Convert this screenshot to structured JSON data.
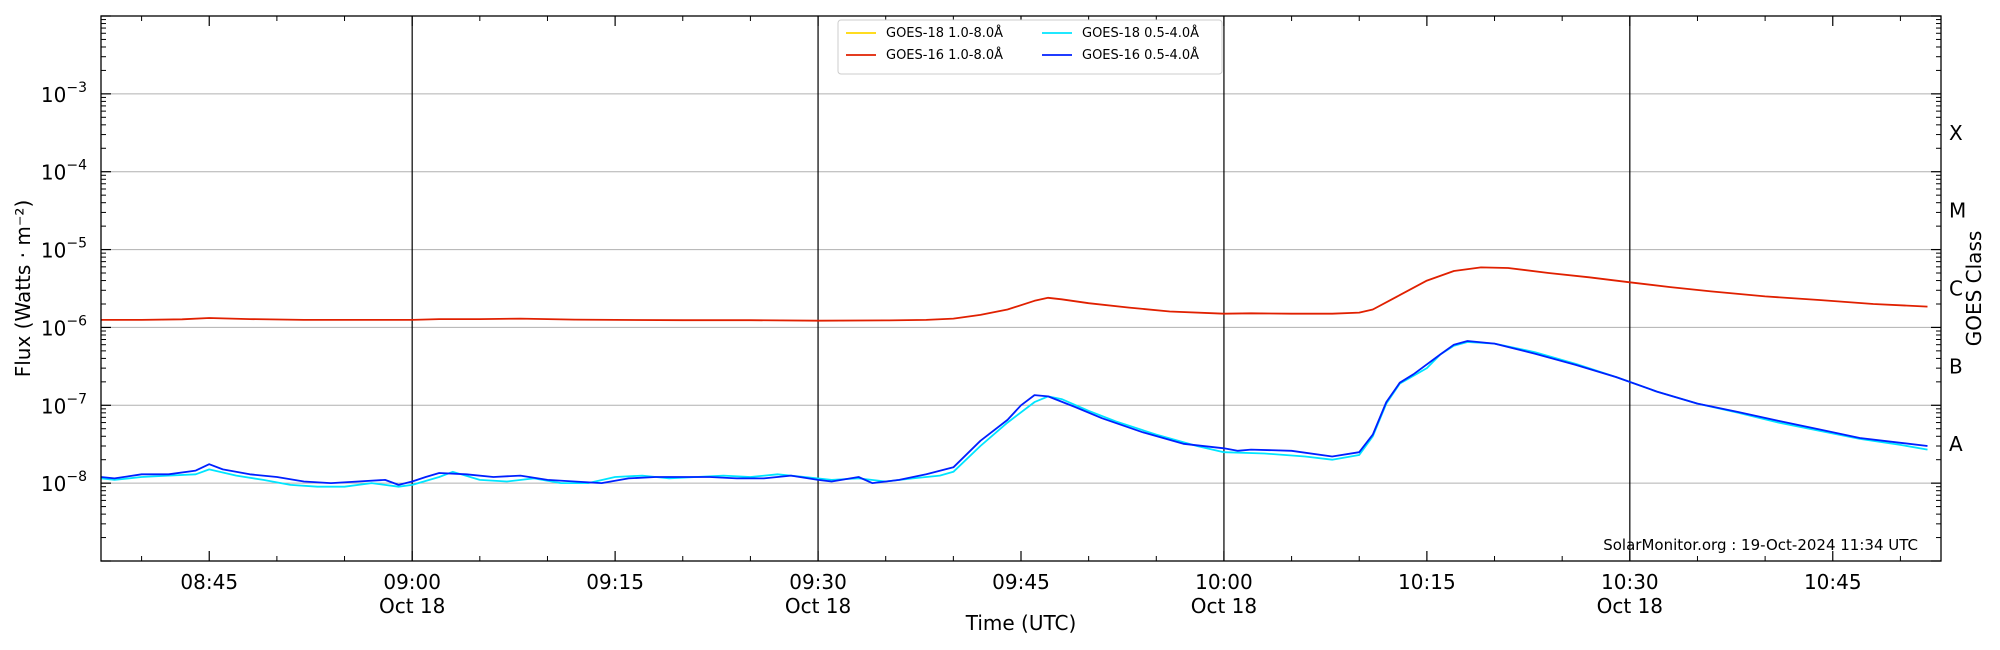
{
  "chart_data": {
    "type": "line",
    "xlabel": "Time (UTC)",
    "ylabel": "Flux (Watts · m⁻²)",
    "y2label": "GOES Class",
    "credit": "SolarMonitor.org : 19-Oct-2024 11:34 UTC",
    "yscale": "log",
    "xlim": [
      "08:37",
      "10:53"
    ],
    "ylim": [
      1e-09,
      0.01
    ],
    "grid": "horizontal",
    "legend_position": "top-center",
    "x_ticks": [
      {
        "t": "08:45",
        "label": "08:45",
        "date": ""
      },
      {
        "t": "09:00",
        "label": "09:00",
        "date": "Oct 18"
      },
      {
        "t": "09:15",
        "label": "09:15",
        "date": ""
      },
      {
        "t": "09:30",
        "label": "09:30",
        "date": "Oct 18"
      },
      {
        "t": "09:45",
        "label": "09:45",
        "date": ""
      },
      {
        "t": "10:00",
        "label": "10:00",
        "date": "Oct 18"
      },
      {
        "t": "10:15",
        "label": "10:15",
        "date": ""
      },
      {
        "t": "10:30",
        "label": "10:30",
        "date": "Oct 18"
      },
      {
        "t": "10:45",
        "label": "10:45",
        "date": ""
      }
    ],
    "vlines": [
      "09:00",
      "09:30",
      "10:00",
      "10:30"
    ],
    "y_ticks": [
      {
        "exp": -8,
        "base": "10",
        "sup": "−8"
      },
      {
        "exp": -7,
        "base": "10",
        "sup": "−7"
      },
      {
        "exp": -6,
        "base": "10",
        "sup": "−6"
      },
      {
        "exp": -5,
        "base": "10",
        "sup": "−5"
      },
      {
        "exp": -4,
        "base": "10",
        "sup": "−4"
      },
      {
        "exp": -3,
        "base": "10",
        "sup": "−3"
      }
    ],
    "classes": [
      {
        "label": "A",
        "exp": -7.5
      },
      {
        "label": "B",
        "exp": -6.5
      },
      {
        "label": "C",
        "exp": -5.5
      },
      {
        "label": "M",
        "exp": -4.5
      },
      {
        "label": "X",
        "exp": -3.5
      }
    ],
    "series": [
      {
        "name": "GOES-18 1.0-8.0Å",
        "color": "#ffd700",
        "points": []
      },
      {
        "name": "GOES-16 1.0-8.0Å",
        "color": "#e02000",
        "points": [
          [
            "08:37",
            1.25e-06
          ],
          [
            "08:40",
            1.25e-06
          ],
          [
            "08:43",
            1.27e-06
          ],
          [
            "08:45",
            1.32e-06
          ],
          [
            "08:48",
            1.28e-06
          ],
          [
            "08:52",
            1.25e-06
          ],
          [
            "08:56",
            1.25e-06
          ],
          [
            "09:00",
            1.25e-06
          ],
          [
            "09:02",
            1.28e-06
          ],
          [
            "09:05",
            1.28e-06
          ],
          [
            "09:08",
            1.3e-06
          ],
          [
            "09:12",
            1.26e-06
          ],
          [
            "09:15",
            1.25e-06
          ],
          [
            "09:20",
            1.24e-06
          ],
          [
            "09:25",
            1.24e-06
          ],
          [
            "09:30",
            1.22e-06
          ],
          [
            "09:35",
            1.23e-06
          ],
          [
            "09:38",
            1.25e-06
          ],
          [
            "09:40",
            1.3e-06
          ],
          [
            "09:42",
            1.45e-06
          ],
          [
            "09:44",
            1.7e-06
          ],
          [
            "09:46",
            2.2e-06
          ],
          [
            "09:47",
            2.4e-06
          ],
          [
            "09:48",
            2.3e-06
          ],
          [
            "09:50",
            2.05e-06
          ],
          [
            "09:53",
            1.8e-06
          ],
          [
            "09:56",
            1.6e-06
          ],
          [
            "10:00",
            1.5e-06
          ],
          [
            "10:02",
            1.52e-06
          ],
          [
            "10:05",
            1.5e-06
          ],
          [
            "10:08",
            1.5e-06
          ],
          [
            "10:10",
            1.55e-06
          ],
          [
            "10:11",
            1.7e-06
          ],
          [
            "10:13",
            2.6e-06
          ],
          [
            "10:15",
            4e-06
          ],
          [
            "10:17",
            5.3e-06
          ],
          [
            "10:19",
            5.9e-06
          ],
          [
            "10:21",
            5.8e-06
          ],
          [
            "10:24",
            5e-06
          ],
          [
            "10:27",
            4.4e-06
          ],
          [
            "10:30",
            3.8e-06
          ],
          [
            "10:33",
            3.3e-06
          ],
          [
            "10:36",
            2.9e-06
          ],
          [
            "10:40",
            2.5e-06
          ],
          [
            "10:44",
            2.25e-06
          ],
          [
            "10:48",
            2e-06
          ],
          [
            "10:52",
            1.85e-06
          ]
        ]
      },
      {
        "name": "GOES-18 0.5-4.0Å",
        "color": "#00e5ff",
        "points": [
          [
            "08:37",
            1.15e-08
          ],
          [
            "08:38",
            1.1e-08
          ],
          [
            "08:40",
            1.2e-08
          ],
          [
            "08:42",
            1.25e-08
          ],
          [
            "08:44",
            1.3e-08
          ],
          [
            "08:45",
            1.5e-08
          ],
          [
            "08:47",
            1.25e-08
          ],
          [
            "08:49",
            1.1e-08
          ],
          [
            "08:51",
            9.5e-09
          ],
          [
            "08:53",
            9e-09
          ],
          [
            "08:55",
            9e-09
          ],
          [
            "08:57",
            1e-08
          ],
          [
            "08:59",
            9e-09
          ],
          [
            "09:00",
            9.5e-09
          ],
          [
            "09:02",
            1.2e-08
          ],
          [
            "09:03",
            1.4e-08
          ],
          [
            "09:05",
            1.1e-08
          ],
          [
            "09:07",
            1.05e-08
          ],
          [
            "09:09",
            1.15e-08
          ],
          [
            "09:11",
            1e-08
          ],
          [
            "09:13",
            1e-08
          ],
          [
            "09:15",
            1.2e-08
          ],
          [
            "09:17",
            1.25e-08
          ],
          [
            "09:19",
            1.15e-08
          ],
          [
            "09:21",
            1.2e-08
          ],
          [
            "09:23",
            1.25e-08
          ],
          [
            "09:25",
            1.2e-08
          ],
          [
            "09:27",
            1.3e-08
          ],
          [
            "09:29",
            1.2e-08
          ],
          [
            "09:31",
            1.1e-08
          ],
          [
            "09:33",
            1.15e-08
          ],
          [
            "09:35",
            1.05e-08
          ],
          [
            "09:37",
            1.15e-08
          ],
          [
            "09:39",
            1.25e-08
          ],
          [
            "09:40",
            1.4e-08
          ],
          [
            "09:42",
            3e-08
          ],
          [
            "09:44",
            6e-08
          ],
          [
            "09:46",
            1.1e-07
          ],
          [
            "09:47",
            1.3e-07
          ],
          [
            "09:48",
            1.2e-07
          ],
          [
            "09:50",
            8.5e-08
          ],
          [
            "09:52",
            6.2e-08
          ],
          [
            "09:55",
            4.2e-08
          ],
          [
            "09:58",
            3e-08
          ],
          [
            "10:00",
            2.5e-08
          ],
          [
            "10:03",
            2.4e-08
          ],
          [
            "10:06",
            2.2e-08
          ],
          [
            "10:08",
            2e-08
          ],
          [
            "10:10",
            2.3e-08
          ],
          [
            "10:11",
            4e-08
          ],
          [
            "10:12",
            1.05e-07
          ],
          [
            "10:13",
            1.9e-07
          ],
          [
            "10:15",
            3e-07
          ],
          [
            "10:16",
            4.5e-07
          ],
          [
            "10:17",
            5.8e-07
          ],
          [
            "10:18",
            6.5e-07
          ],
          [
            "10:20",
            6.2e-07
          ],
          [
            "10:23",
            4.8e-07
          ],
          [
            "10:26",
            3.4e-07
          ],
          [
            "10:29",
            2.3e-07
          ],
          [
            "10:32",
            1.5e-07
          ],
          [
            "10:35",
            1.05e-07
          ],
          [
            "10:38",
            8e-08
          ],
          [
            "10:41",
            6e-08
          ],
          [
            "10:44",
            4.7e-08
          ],
          [
            "10:47",
            3.7e-08
          ],
          [
            "10:50",
            3.1e-08
          ],
          [
            "10:52",
            2.7e-08
          ]
        ]
      },
      {
        "name": "GOES-16 0.5-4.0Å",
        "color": "#0020ff",
        "points": [
          [
            "08:37",
            1.2e-08
          ],
          [
            "08:38",
            1.15e-08
          ],
          [
            "08:40",
            1.3e-08
          ],
          [
            "08:42",
            1.3e-08
          ],
          [
            "08:44",
            1.45e-08
          ],
          [
            "08:45",
            1.75e-08
          ],
          [
            "08:46",
            1.5e-08
          ],
          [
            "08:48",
            1.3e-08
          ],
          [
            "08:50",
            1.2e-08
          ],
          [
            "08:52",
            1.05e-08
          ],
          [
            "08:54",
            1e-08
          ],
          [
            "08:56",
            1.05e-08
          ],
          [
            "08:58",
            1.1e-08
          ],
          [
            "08:59",
            9.5e-09
          ],
          [
            "09:00",
            1.05e-08
          ],
          [
            "09:01",
            1.2e-08
          ],
          [
            "09:02",
            1.35e-08
          ],
          [
            "09:04",
            1.3e-08
          ],
          [
            "09:06",
            1.2e-08
          ],
          [
            "09:08",
            1.25e-08
          ],
          [
            "09:10",
            1.1e-08
          ],
          [
            "09:12",
            1.05e-08
          ],
          [
            "09:14",
            1e-08
          ],
          [
            "09:16",
            1.15e-08
          ],
          [
            "09:18",
            1.2e-08
          ],
          [
            "09:20",
            1.2e-08
          ],
          [
            "09:22",
            1.2e-08
          ],
          [
            "09:24",
            1.15e-08
          ],
          [
            "09:26",
            1.15e-08
          ],
          [
            "09:28",
            1.25e-08
          ],
          [
            "09:30",
            1.1e-08
          ],
          [
            "09:31",
            1.05e-08
          ],
          [
            "09:33",
            1.2e-08
          ],
          [
            "09:34",
            1e-08
          ],
          [
            "09:36",
            1.1e-08
          ],
          [
            "09:38",
            1.3e-08
          ],
          [
            "09:40",
            1.6e-08
          ],
          [
            "09:42",
            3.5e-08
          ],
          [
            "09:44",
            6.5e-08
          ],
          [
            "09:45",
            1e-07
          ],
          [
            "09:46",
            1.35e-07
          ],
          [
            "09:47",
            1.3e-07
          ],
          [
            "09:49",
            9.5e-08
          ],
          [
            "09:51",
            6.8e-08
          ],
          [
            "09:54",
            4.5e-08
          ],
          [
            "09:57",
            3.2e-08
          ],
          [
            "10:00",
            2.8e-08
          ],
          [
            "10:01",
            2.6e-08
          ],
          [
            "10:02",
            2.7e-08
          ],
          [
            "10:05",
            2.6e-08
          ],
          [
            "10:08",
            2.2e-08
          ],
          [
            "10:10",
            2.5e-08
          ],
          [
            "10:11",
            4.2e-08
          ],
          [
            "10:12",
            1.1e-07
          ],
          [
            "10:13",
            1.95e-07
          ],
          [
            "10:14",
            2.5e-07
          ],
          [
            "10:16",
            4.5e-07
          ],
          [
            "10:17",
            6e-07
          ],
          [
            "10:18",
            6.7e-07
          ],
          [
            "10:20",
            6.2e-07
          ],
          [
            "10:23",
            4.6e-07
          ],
          [
            "10:26",
            3.3e-07
          ],
          [
            "10:29",
            2.3e-07
          ],
          [
            "10:32",
            1.5e-07
          ],
          [
            "10:35",
            1.05e-07
          ],
          [
            "10:38",
            8.2e-08
          ],
          [
            "10:41",
            6.3e-08
          ],
          [
            "10:44",
            4.9e-08
          ],
          [
            "10:47",
            3.8e-08
          ],
          [
            "10:50",
            3.3e-08
          ],
          [
            "10:52",
            3e-08
          ]
        ]
      }
    ]
  }
}
